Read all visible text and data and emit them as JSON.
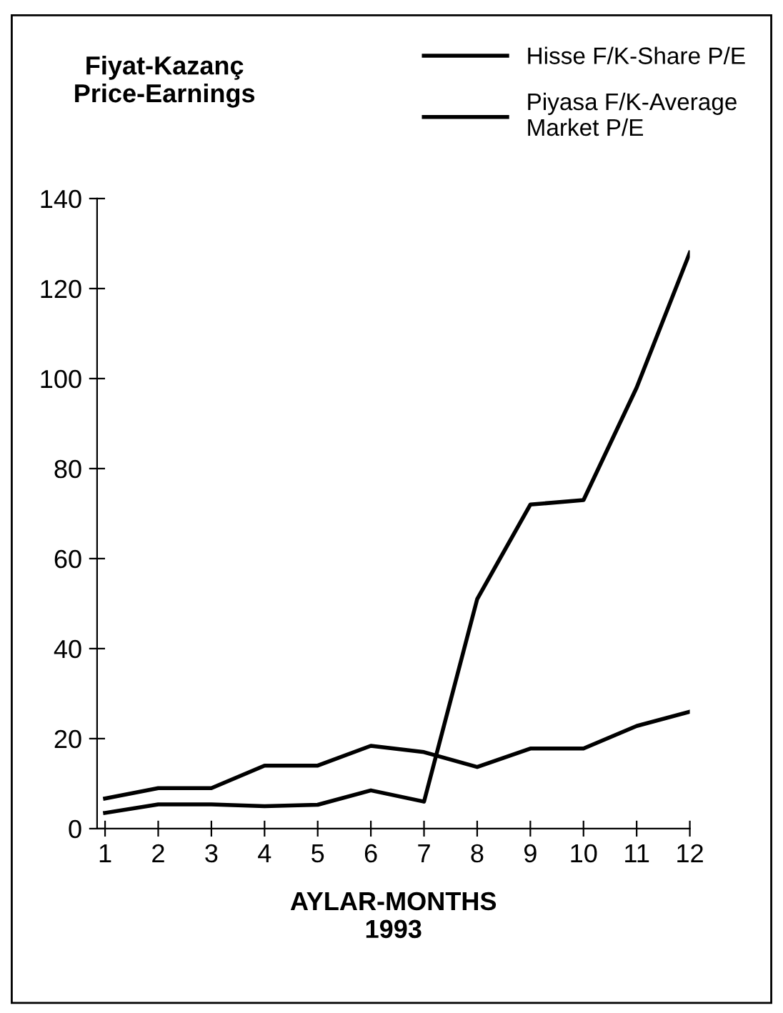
{
  "chart_data": {
    "type": "line",
    "title": "Fiyat-Kazanç\nPrice-Earnings",
    "xlabel": "AYLAR-MONTHS\n1993",
    "x": [
      1,
      2,
      3,
      4,
      5,
      6,
      7,
      8,
      9,
      10,
      11,
      12
    ],
    "series": [
      {
        "name": "Hisse F/K-Share P/E",
        "color": "#000000",
        "values": [
          3.5,
          5.4,
          5.4,
          5,
          5.3,
          8.5,
          6,
          51,
          72,
          73,
          98,
          128
        ]
      },
      {
        "name": "Piyasa F/K-Average\nMarket P/E",
        "color": "#000000",
        "values": [
          6.7,
          9,
          9,
          14,
          14,
          18.4,
          17,
          13.7,
          17.8,
          17.8,
          22.8,
          26
        ]
      }
    ],
    "xlim": [
      0.85,
      12
    ],
    "xticks": [
      1,
      2,
      3,
      4,
      5,
      6,
      7,
      8,
      9,
      10,
      11,
      12
    ],
    "ylim": [
      0,
      140
    ],
    "yticks": [
      0,
      20,
      40,
      60,
      80,
      100,
      120,
      140
    ],
    "grid": false,
    "legend": "top right",
    "marker": "none",
    "line_style": "solid"
  }
}
